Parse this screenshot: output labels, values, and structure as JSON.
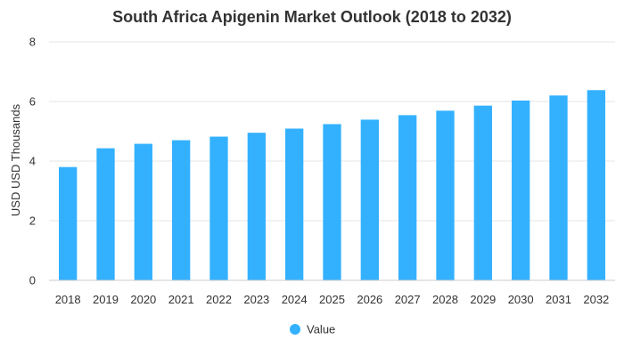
{
  "chart_data": {
    "type": "bar",
    "title": "South Africa Apigenin Market Outlook (2018 to 2032)",
    "xlabel": "",
    "ylabel": "USD USD Thousands",
    "categories": [
      "2018",
      "2019",
      "2020",
      "2021",
      "2022",
      "2023",
      "2024",
      "2025",
      "2026",
      "2027",
      "2028",
      "2029",
      "2030",
      "2031",
      "2032"
    ],
    "series": [
      {
        "name": "Value",
        "values": [
          3.8,
          4.43,
          4.58,
          4.7,
          4.82,
          4.95,
          5.09,
          5.24,
          5.39,
          5.54,
          5.69,
          5.86,
          6.03,
          6.2,
          6.38
        ],
        "color": "#33b1ff"
      }
    ],
    "ylim": [
      0,
      8
    ],
    "yticks": [
      0,
      2,
      4,
      6,
      8
    ],
    "grid": true,
    "legend_position": "bottom-center"
  }
}
